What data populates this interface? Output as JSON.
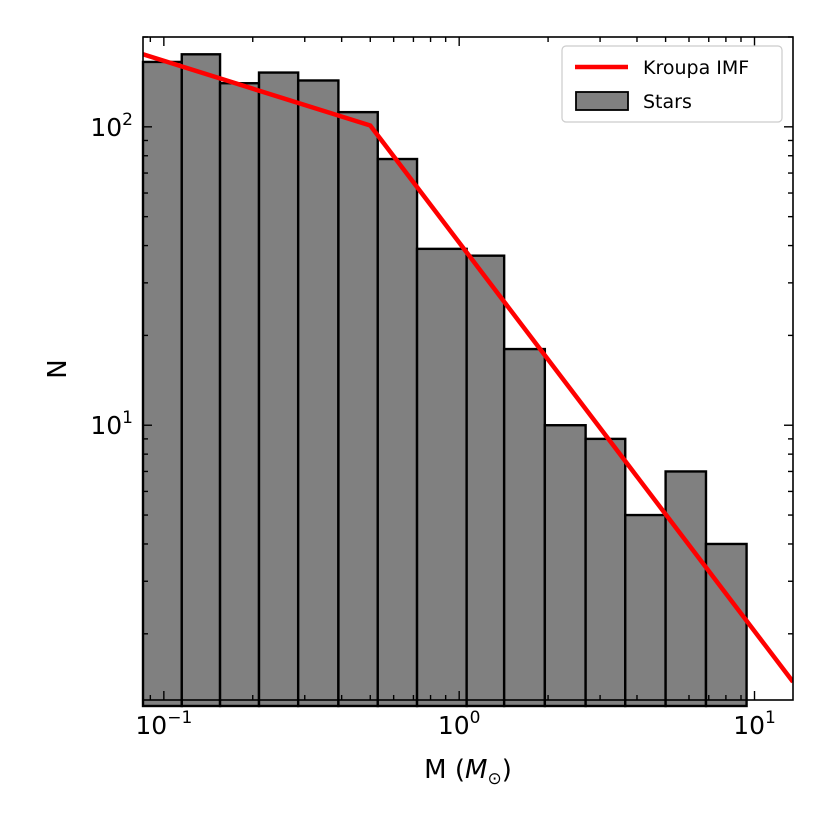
{
  "chart_data": {
    "type": "bar",
    "xlabel_main": "M (",
    "xlabel_sym": "M",
    "xlabel_sub": "⊙",
    "xlabel_close": ")",
    "ylabel": "N",
    "xscale": "log",
    "yscale": "log",
    "xlim": [
      0.085,
      13.5
    ],
    "ylim": [
      1.2,
      200
    ],
    "grid": false,
    "legend_position": "top-right",
    "x_ticks": [
      {
        "value": 0.1,
        "base": "10",
        "exp": "−1"
      },
      {
        "value": 1,
        "base": "10",
        "exp": "0"
      },
      {
        "value": 10,
        "base": "10",
        "exp": "1"
      }
    ],
    "y_ticks": [
      {
        "value": 10,
        "base": "10",
        "exp": "1"
      },
      {
        "value": 100,
        "base": "10",
        "exp": "2"
      }
    ],
    "bin_edges": [
      0.085,
      0.115,
      0.155,
      0.21,
      0.285,
      0.39,
      0.53,
      0.72,
      1.06,
      1.42,
      1.95,
      2.68,
      3.65,
      5.0,
      6.85,
      9.4
    ],
    "counts": [
      165,
      175,
      140,
      152,
      143,
      112,
      78,
      39,
      37,
      18,
      10,
      9,
      5,
      7,
      4
    ],
    "hist_color": "#808080",
    "hist_edge": "#000000",
    "hist_name": "Stars",
    "line_name": "Kroupa IMF",
    "line_color": "#ff0000",
    "line": {
      "x": [
        0.085,
        0.5,
        13.5
      ],
      "y": [
        175,
        101,
        1.38
      ]
    }
  }
}
